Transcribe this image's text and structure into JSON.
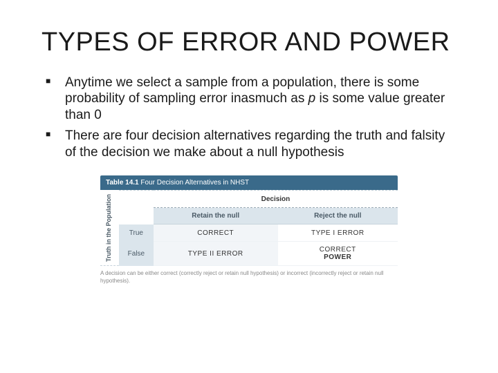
{
  "title": "TYPES OF ERROR AND POWER",
  "bullets": [
    {
      "before": "Anytime we select a sample from a population, there is some probability of sampling error inasmuch as ",
      "italic": "p",
      "after": " is some value greater than 0"
    },
    {
      "text": "There are four decision alternatives regarding the truth and falsity of the decision we make about a null hypothesis"
    }
  ],
  "table": {
    "titleNum": "Table 14.1",
    "titleText": "Four Decision Alternatives in NHST",
    "decisionHeader": "Decision",
    "colHeaders": [
      "Retain the null",
      "Reject the null"
    ],
    "sideLabel": "Truth in the Population",
    "rows": [
      {
        "label": "True",
        "cells": [
          "CORRECT",
          "TYPE I ERROR"
        ]
      },
      {
        "label": "False",
        "cells": [
          "TYPE II ERROR",
          "CORRECT"
        ],
        "extra": "POWER"
      }
    ],
    "caption": "A decision can be either correct (correctly reject or retain null hypothesis) or incorrect (incorrectly reject or retain null hypothesis)."
  },
  "colors": {
    "tableHeader": "#3a6a8a",
    "subHeader": "#dbe5ec",
    "cellBg": "#f2f5f8"
  }
}
